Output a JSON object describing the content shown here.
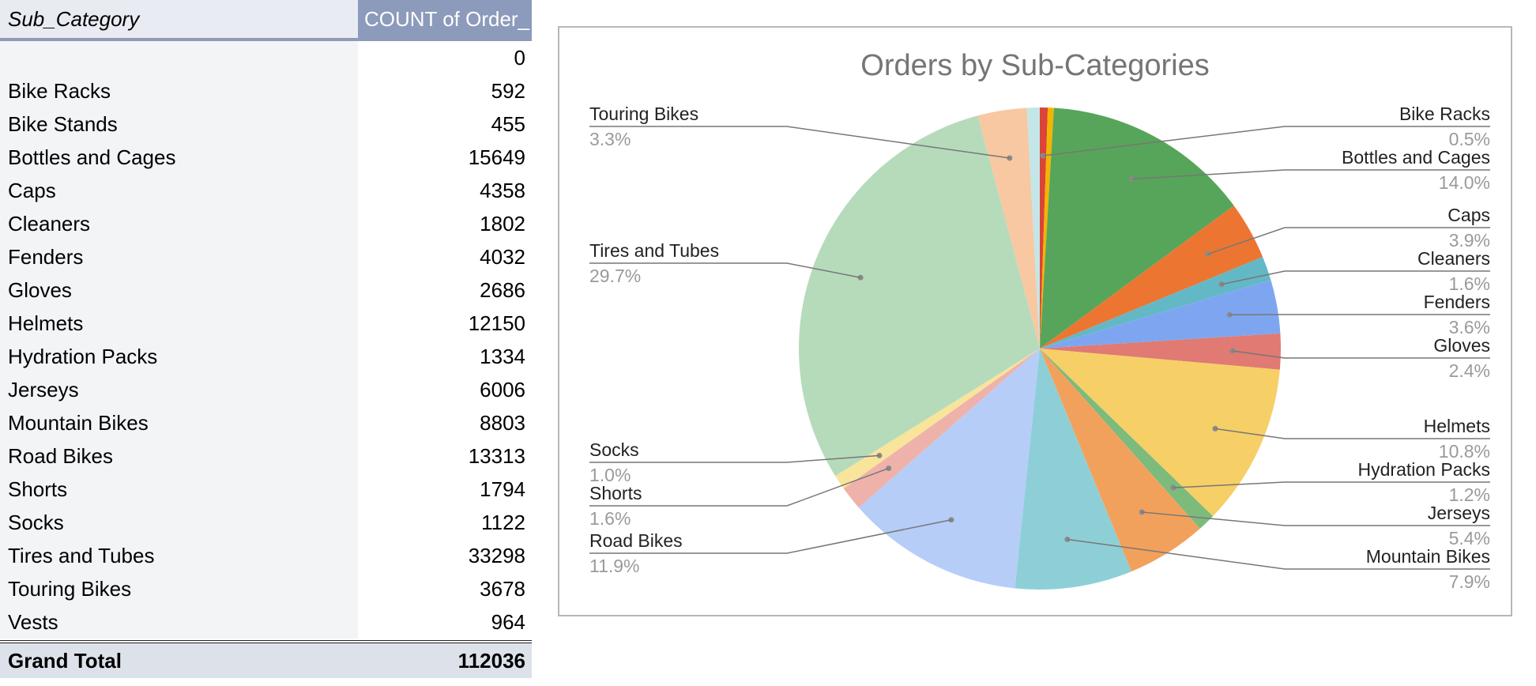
{
  "pivot": {
    "header_label": "Sub_Category",
    "header_value": "COUNT of Order_",
    "rows": [
      {
        "label": "",
        "value": "0"
      },
      {
        "label": "Bike Racks",
        "value": "592"
      },
      {
        "label": "Bike Stands",
        "value": "455"
      },
      {
        "label": "Bottles and Cages",
        "value": "15649"
      },
      {
        "label": "Caps",
        "value": "4358"
      },
      {
        "label": "Cleaners",
        "value": "1802"
      },
      {
        "label": "Fenders",
        "value": "4032"
      },
      {
        "label": "Gloves",
        "value": "2686"
      },
      {
        "label": "Helmets",
        "value": "12150"
      },
      {
        "label": "Hydration Packs",
        "value": "1334"
      },
      {
        "label": "Jerseys",
        "value": "6006"
      },
      {
        "label": "Mountain Bikes",
        "value": "8803"
      },
      {
        "label": "Road Bikes",
        "value": "13313"
      },
      {
        "label": "Shorts",
        "value": "1794"
      },
      {
        "label": "Socks",
        "value": "1122"
      },
      {
        "label": "Tires and Tubes",
        "value": "33298"
      },
      {
        "label": "Touring Bikes",
        "value": "3678"
      },
      {
        "label": "Vests",
        "value": "964"
      }
    ],
    "total_label": "Grand Total",
    "total_value": "112036"
  },
  "chart_data": {
    "type": "pie",
    "title": "Orders by Sub-Categories",
    "slices": [
      {
        "name": "Bike Racks",
        "value": 592,
        "pct": "0.5%",
        "color": "#db4437",
        "label_side": "right",
        "show_label": true
      },
      {
        "name": "Bike Stands",
        "value": 455,
        "pct": "",
        "color": "#f4b400",
        "label_side": "right",
        "show_label": false
      },
      {
        "name": "Bottles and Cages",
        "value": 15649,
        "pct": "14.0%",
        "color": "#57a55a",
        "label_side": "right",
        "show_label": true
      },
      {
        "name": "Caps",
        "value": 4358,
        "pct": "3.9%",
        "color": "#ed7532",
        "label_side": "right",
        "show_label": true
      },
      {
        "name": "Cleaners",
        "value": 1802,
        "pct": "1.6%",
        "color": "#63b8c6",
        "label_side": "right",
        "show_label": true
      },
      {
        "name": "Fenders",
        "value": 4032,
        "pct": "3.6%",
        "color": "#7ea6f0",
        "label_side": "right",
        "show_label": true
      },
      {
        "name": "Gloves",
        "value": 2686,
        "pct": "2.4%",
        "color": "#e07a72",
        "label_side": "right",
        "show_label": true
      },
      {
        "name": "Helmets",
        "value": 12150,
        "pct": "10.8%",
        "color": "#f6cf67",
        "label_side": "right",
        "show_label": true
      },
      {
        "name": "Hydration Packs",
        "value": 1334,
        "pct": "1.2%",
        "color": "#7cbb7c",
        "label_side": "right",
        "show_label": true
      },
      {
        "name": "Jerseys",
        "value": 6006,
        "pct": "5.4%",
        "color": "#f2a15c",
        "label_side": "right",
        "show_label": true
      },
      {
        "name": "Mountain Bikes",
        "value": 8803,
        "pct": "7.9%",
        "color": "#8ecfd7",
        "label_side": "right",
        "show_label": true
      },
      {
        "name": "Road Bikes",
        "value": 13313,
        "pct": "11.9%",
        "color": "#b6cdf7",
        "label_side": "left",
        "show_label": true
      },
      {
        "name": "Shorts",
        "value": 1794,
        "pct": "1.6%",
        "color": "#efb2ab",
        "label_side": "left",
        "show_label": true
      },
      {
        "name": "Socks",
        "value": 1122,
        "pct": "1.0%",
        "color": "#f8e49b",
        "label_side": "left",
        "show_label": true
      },
      {
        "name": "Tires and Tubes",
        "value": 33298,
        "pct": "29.7%",
        "color": "#b6dbbb",
        "label_side": "left",
        "show_label": true
      },
      {
        "name": "Touring Bikes",
        "value": 3678,
        "pct": "3.3%",
        "color": "#f7c8a2",
        "label_side": "left",
        "show_label": true
      },
      {
        "name": "Vests",
        "value": 964,
        "pct": "",
        "color": "#c4e6e8",
        "label_side": "left",
        "show_label": false
      }
    ]
  }
}
